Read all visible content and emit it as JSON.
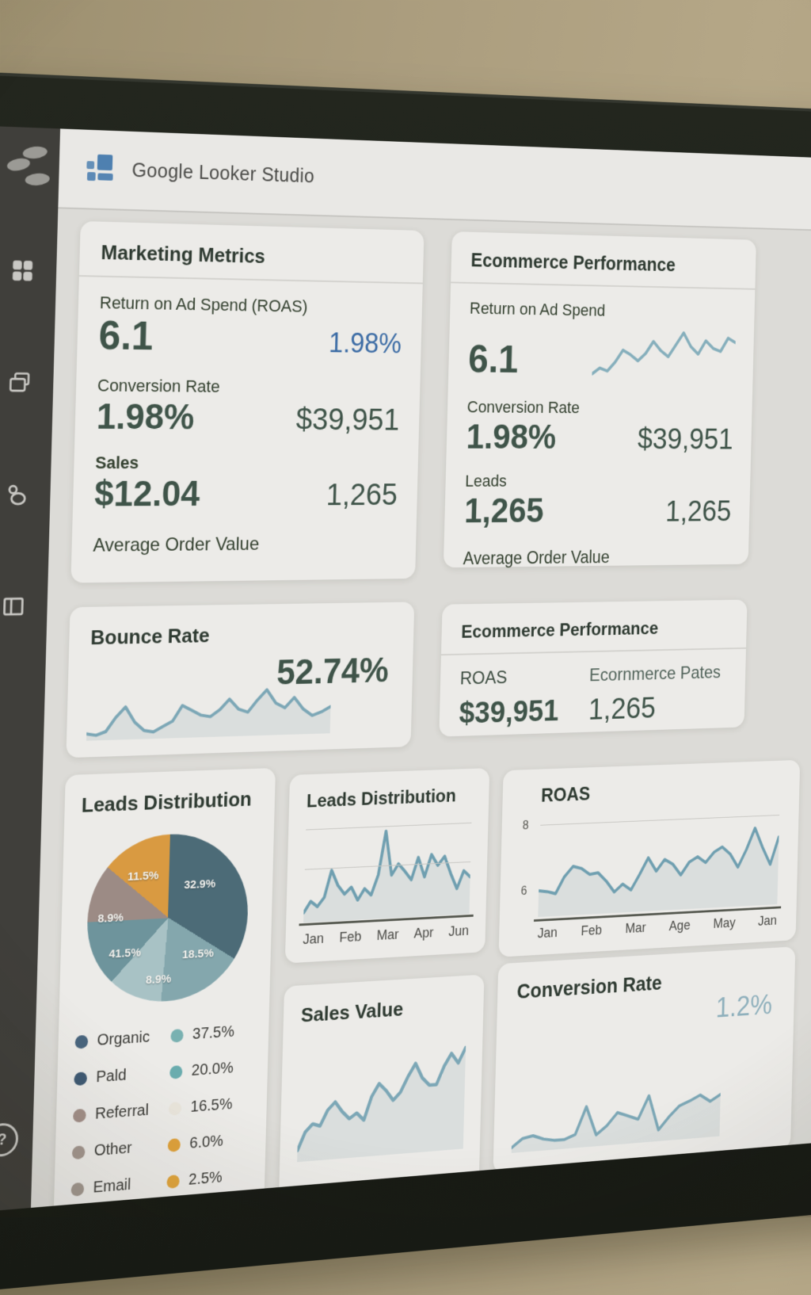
{
  "header": {
    "product_name": "Google Looker Studio"
  },
  "sidebar": {
    "icons": [
      "logo-cluster",
      "modules",
      "pages",
      "profile",
      "layout-columns",
      "help"
    ]
  },
  "theme": {
    "wall": "#ab9d7e",
    "bezel": "#1d201a",
    "sidebar_bg": "#403f3b",
    "screen_bg": "#dcdbd7",
    "card_bg": "#ecebe8",
    "title_text": "#2e3a31",
    "value_text": "#3f5449",
    "accent_blue": "#3c6ca5",
    "line_teal": "#7ca7b6",
    "icon_gray": "#c9c8c4"
  },
  "cards": {
    "marketing": {
      "title": "Marketing Metrics",
      "roas_label": "Return on Ad Spend (ROAS)",
      "roas_value": "6.1",
      "roas_secondary": "1.98%",
      "cr_label": "Conversion Rate",
      "cr_value": "1.98%",
      "cr_secondary": "$39,951",
      "sales_label": "Sales",
      "sales_value": "$12.04",
      "sales_secondary": "1,265",
      "aov_label": "Average Order Value"
    },
    "ecommerce": {
      "title": "Ecommerce Performance",
      "roas_label": "Return on Ad Spend",
      "roas_value": "6.1",
      "cr_label": "Conversion Rate",
      "cr_value": "1.98%",
      "cr_secondary": "$39,951",
      "leads_label": "Leads",
      "leads_value": "1,265",
      "leads_secondary": "1,265",
      "aov_label": "Average Order Value"
    },
    "bounce": {
      "title": "Bounce Rate",
      "value": "52.74%"
    },
    "ecommerce_summary": {
      "title": "Ecommerce Performance",
      "col1_label": "ROAS",
      "col1_value": "$39,951",
      "col2_label": "Ecornmerce Pates",
      "col2_value": "1,265"
    },
    "sales_value": {
      "title": "Sales Value"
    },
    "conversion": {
      "title": "Conversion Rate",
      "value": "1.2%"
    }
  },
  "chart_data": [
    {
      "id": "ecommerce_roas_sparkline",
      "type": "line",
      "color": "#86afbc",
      "stroke": 4,
      "values": [
        12,
        20,
        16,
        28,
        44,
        38,
        30,
        40,
        56,
        44,
        36,
        52,
        68,
        50,
        40,
        58,
        48,
        44,
        62,
        56
      ]
    },
    {
      "id": "bounce_rate_sparkline",
      "type": "line",
      "title": "Bounce Rate",
      "kpi": "52.74%",
      "color": "#7ca7b6",
      "stroke": 4,
      "area": true,
      "values": [
        22,
        20,
        24,
        40,
        52,
        34,
        24,
        22,
        28,
        34,
        52,
        46,
        40,
        38,
        46,
        58,
        46,
        42,
        56,
        68,
        52,
        46,
        58,
        44,
        36,
        40,
        46
      ]
    },
    {
      "id": "leads_distribution_pie",
      "type": "pie",
      "title": "Leads Distribution",
      "slices": [
        {
          "label": "32.9%",
          "color": "#4c6b77",
          "visual_pct": 34
        },
        {
          "label": "18.5%",
          "color": "#84a7ad",
          "visual_pct": 17
        },
        {
          "label": "8.9%",
          "color": "#a8c2c5",
          "visual_pct": 11
        },
        {
          "label": "41.5%",
          "color": "#6e949c",
          "visual_pct": 13
        },
        {
          "label": "8.9%",
          "color": "#9c8b85",
          "visual_pct": 11
        },
        {
          "label": "11.5%",
          "color": "#d99a41",
          "visual_pct": 14
        }
      ],
      "legend": [
        {
          "label": "Organic",
          "dot_color": "#49657e",
          "value": "37.5%",
          "value_dot_color": "#79b1b1"
        },
        {
          "label": "Pald",
          "dot_color": "#3f5a73",
          "value": "20.0%",
          "value_dot_color": "#6aacae"
        },
        {
          "label": "Referral",
          "dot_color": "#a28f88",
          "value": "16.5%",
          "value_dot_color": "#e9e5dc"
        },
        {
          "label": "Other",
          "dot_color": "#a2968e",
          "value": "6.0%",
          "value_dot_color": "#dfa23c"
        },
        {
          "label": "Email",
          "dot_color": "#a1978f",
          "value": "2.5%",
          "value_dot_color": "#e0a53e"
        }
      ]
    },
    {
      "id": "leads_distribution_line",
      "type": "line",
      "title": "Leads Distribution",
      "color": "#6f9fb0",
      "stroke": 4,
      "area": true,
      "x_labels": [
        "Jan",
        "Feb",
        "Mar",
        "Apr",
        "Jun"
      ],
      "values": [
        15,
        25,
        20,
        28,
        52,
        38,
        30,
        36,
        24,
        34,
        28,
        46,
        85,
        45,
        55,
        48,
        40,
        60,
        42,
        62,
        52,
        60,
        44,
        30,
        46,
        40
      ]
    },
    {
      "id": "roas_line",
      "type": "area",
      "title": "ROAS",
      "color": "#6f9fb0",
      "stroke": 4,
      "area": true,
      "x_labels": [
        "Jan",
        "Feb",
        "Mar",
        "Age",
        "May",
        "Jan"
      ],
      "y_ticks": [
        "8",
        "6"
      ],
      "ylim": [
        5.4,
        8.5
      ],
      "values": [
        6.05,
        6.0,
        5.9,
        6.55,
        6.95,
        6.85,
        6.6,
        6.65,
        6.3,
        5.85,
        6.15,
        5.9,
        6.5,
        7.15,
        6.6,
        7.05,
        6.85,
        6.4,
        6.9,
        7.1,
        6.85,
        7.25,
        7.45,
        7.15,
        6.6,
        7.3,
        8.15,
        7.35,
        6.65,
        7.75
      ]
    },
    {
      "id": "sales_value_line",
      "type": "line",
      "title": "Sales Value",
      "color": "#7ca7b6",
      "stroke": 4.5,
      "area": true,
      "values": [
        8,
        22,
        28,
        26,
        38,
        44,
        36,
        30,
        34,
        28,
        46,
        56,
        50,
        42,
        48,
        60,
        70,
        58,
        52,
        52,
        66,
        76,
        68,
        80
      ]
    },
    {
      "id": "conversion_rate_sparkline",
      "type": "line",
      "title": "Conversion Rate",
      "kpi": "1.2%",
      "color": "#7ca7b6",
      "stroke": 4,
      "area": true,
      "values": [
        18,
        26,
        28,
        24,
        22,
        22,
        26,
        52,
        24,
        32,
        44,
        40,
        36,
        58,
        24,
        36,
        46,
        50,
        55,
        48,
        54
      ]
    }
  ]
}
